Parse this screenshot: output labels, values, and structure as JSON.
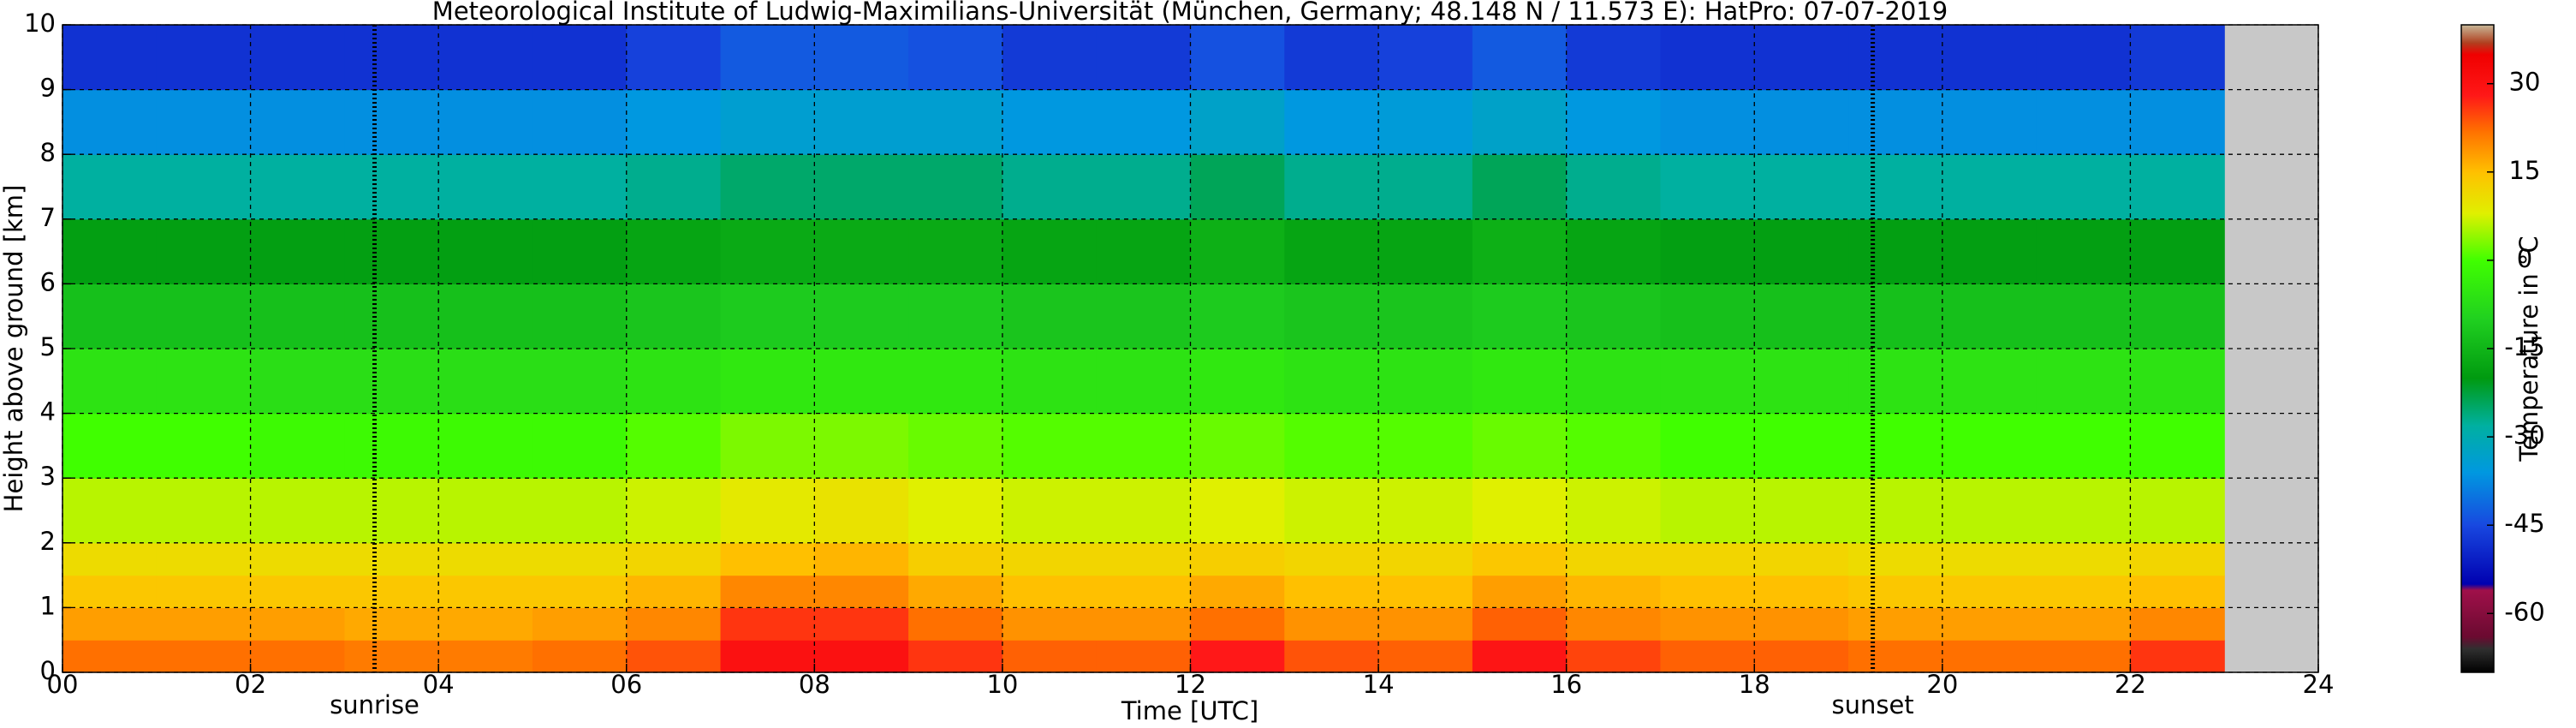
{
  "chart_data": {
    "type": "heatmap",
    "title": "Meteorological Institute of Ludwig-Maximilians-Universität (München, Germany; 48.148 N / 11.573 E):    HatPro: 07-07-2019",
    "xlabel": "Time [UTC]",
    "ylabel": "Height above ground [km]",
    "colorbar_label": "Temperature in °C",
    "xlim": [
      0,
      24
    ],
    "ylim": [
      0,
      10
    ],
    "clim": [
      -70,
      40
    ],
    "xticks": [
      {
        "value": 0,
        "label": "00"
      },
      {
        "value": 2,
        "label": "02"
      },
      {
        "value": 4,
        "label": "04"
      },
      {
        "value": 6,
        "label": "06"
      },
      {
        "value": 8,
        "label": "08"
      },
      {
        "value": 10,
        "label": "10"
      },
      {
        "value": 12,
        "label": "12"
      },
      {
        "value": 14,
        "label": "14"
      },
      {
        "value": 16,
        "label": "16"
      },
      {
        "value": 18,
        "label": "18"
      },
      {
        "value": 20,
        "label": "20"
      },
      {
        "value": 22,
        "label": "22"
      },
      {
        "value": 24,
        "label": "24"
      }
    ],
    "yticks": [
      0,
      1,
      2,
      3,
      4,
      5,
      6,
      7,
      8,
      9,
      10
    ],
    "cticks": [
      30,
      15,
      0,
      -15,
      -30,
      -45,
      -60
    ],
    "grid": true,
    "missing_color": "#c8c8c8",
    "annotations": [
      {
        "x": 3.32,
        "label": "sunrise"
      },
      {
        "x": 19.26,
        "label": "sunset"
      }
    ],
    "colormap": [
      [
        -70,
        "#000000"
      ],
      [
        -66,
        "#303030"
      ],
      [
        -64,
        "#6a0a30"
      ],
      [
        -56,
        "#a0104a"
      ],
      [
        -55,
        "#0000b0"
      ],
      [
        -45,
        "#1848e0"
      ],
      [
        -36,
        "#0098e0"
      ],
      [
        -28,
        "#00b0a0"
      ],
      [
        -20,
        "#009a10"
      ],
      [
        -10,
        "#20d020"
      ],
      [
        0,
        "#40ff00"
      ],
      [
        8,
        "#e0f000"
      ],
      [
        15,
        "#ffc000"
      ],
      [
        22,
        "#ff7000"
      ],
      [
        28,
        "#ff1818"
      ],
      [
        35,
        "#f00000"
      ],
      [
        37,
        "#b04020"
      ],
      [
        40,
        "#c8b898"
      ]
    ],
    "xbins": [
      0,
      1,
      2,
      3,
      4,
      5,
      6,
      7,
      8,
      9,
      10,
      11,
      12,
      13,
      14,
      15,
      16,
      17,
      18,
      19,
      20,
      21,
      22,
      23
    ],
    "ybins": [
      0,
      0.5,
      1,
      1.5,
      2,
      3,
      4,
      5,
      6,
      7,
      8,
      9,
      10
    ],
    "values": [
      [
        22,
        22,
        22,
        21,
        21,
        22,
        24,
        30,
        30,
        26,
        23,
        23,
        28,
        24,
        23,
        29,
        25,
        23,
        23,
        22,
        22,
        22,
        26
      ],
      [
        18,
        18,
        18,
        17,
        17,
        18,
        20,
        26,
        26,
        22,
        19,
        19,
        22,
        19,
        19,
        23,
        20,
        19,
        19,
        18,
        18,
        18,
        20
      ],
      [
        14,
        14,
        14,
        14,
        14,
        14,
        16,
        20,
        20,
        17,
        15,
        15,
        17,
        15,
        15,
        18,
        16,
        15,
        15,
        14,
        14,
        14,
        15
      ],
      [
        11,
        11,
        11,
        11,
        11,
        11,
        12,
        15,
        16,
        13,
        12,
        12,
        13,
        12,
        12,
        14,
        12,
        12,
        12,
        11,
        11,
        11,
        12
      ],
      [
        6,
        6,
        6,
        6,
        6,
        6,
        7,
        9,
        10,
        8,
        7,
        7,
        8,
        7,
        7,
        8,
        7,
        6,
        6,
        6,
        6,
        6,
        6
      ],
      [
        0,
        0,
        -1,
        -1,
        -1,
        -1,
        1,
        3,
        3,
        2,
        1,
        1,
        2,
        1,
        1,
        2,
        1,
        0,
        0,
        0,
        0,
        0,
        0
      ],
      [
        -6,
        -6,
        -7,
        -7,
        -7,
        -7,
        -6,
        -5,
        -5,
        -5,
        -6,
        -6,
        -5,
        -6,
        -6,
        -5,
        -6,
        -6,
        -6,
        -6,
        -6,
        -6,
        -6
      ],
      [
        -13,
        -13,
        -13,
        -13,
        -13,
        -13,
        -12,
        -11,
        -11,
        -11,
        -12,
        -12,
        -11,
        -12,
        -12,
        -11,
        -12,
        -13,
        -13,
        -13,
        -13,
        -13,
        -13
      ],
      [
        -19,
        -19,
        -19,
        -19,
        -19,
        -19,
        -18,
        -17,
        -17,
        -17,
        -18,
        -18,
        -16,
        -18,
        -18,
        -16,
        -18,
        -19,
        -19,
        -19,
        -19,
        -19,
        -19
      ],
      [
        -28,
        -28,
        -28,
        -28,
        -28,
        -28,
        -27,
        -25,
        -25,
        -25,
        -27,
        -27,
        -24,
        -27,
        -27,
        -24,
        -27,
        -28,
        -28,
        -28,
        -28,
        -28,
        -28
      ],
      [
        -37,
        -37,
        -37,
        -37,
        -37,
        -37,
        -36,
        -34,
        -34,
        -34,
        -36,
        -36,
        -33,
        -36,
        -35,
        -33,
        -36,
        -37,
        -37,
        -37,
        -37,
        -37,
        -37
      ],
      [
        -48,
        -48,
        -48,
        -48,
        -48,
        -48,
        -46,
        -43,
        -43,
        -44,
        -47,
        -47,
        -44,
        -47,
        -46,
        -43,
        -47,
        -48,
        -48,
        -48,
        -48,
        -48,
        -47
      ]
    ]
  }
}
